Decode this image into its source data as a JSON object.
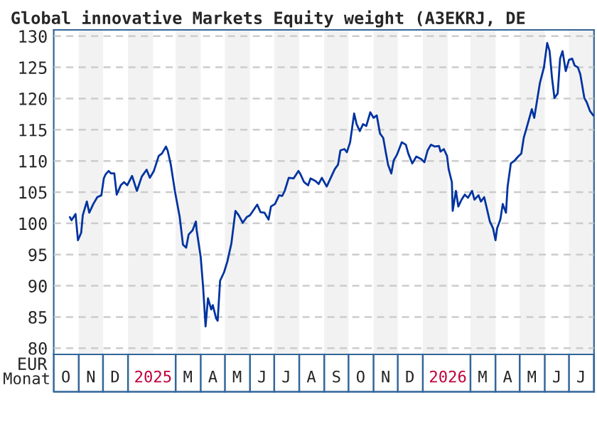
{
  "chart_data": {
    "type": "line",
    "title": "Global innovative Markets Equity weight (A3EKRJ, DE",
    "xlabel": "Monat",
    "ylabel": "EUR",
    "xlim": [
      "2024-10-01",
      "2026-08-01"
    ],
    "ylim": [
      79,
      131
    ],
    "yticks": [
      80,
      85,
      90,
      95,
      100,
      105,
      110,
      115,
      120,
      125,
      130
    ],
    "xticks": [
      {
        "value": "2024-10-16",
        "label": "O"
      },
      {
        "value": "2024-11-16",
        "label": "N"
      },
      {
        "value": "2024-12-16",
        "label": "D"
      },
      {
        "value": "2025-02-01",
        "label": "2025"
      },
      {
        "value": "2025-03-16",
        "label": "M"
      },
      {
        "value": "2025-04-16",
        "label": "A"
      },
      {
        "value": "2025-05-16",
        "label": "M"
      },
      {
        "value": "2025-06-16",
        "label": "J"
      },
      {
        "value": "2025-07-16",
        "label": "J"
      },
      {
        "value": "2025-08-16",
        "label": "A"
      },
      {
        "value": "2025-09-16",
        "label": "S"
      },
      {
        "value": "2025-10-16",
        "label": "O"
      },
      {
        "value": "2025-11-16",
        "label": "N"
      },
      {
        "value": "2025-12-16",
        "label": "D"
      },
      {
        "value": "2026-02-01",
        "label": "2026"
      },
      {
        "value": "2026-03-16",
        "label": "M"
      },
      {
        "value": "2026-04-16",
        "label": "A"
      },
      {
        "value": "2026-05-16",
        "label": "M"
      },
      {
        "value": "2026-06-16",
        "label": "J"
      },
      {
        "value": "2026-07-16",
        "label": "J"
      }
    ],
    "grid": "y",
    "line_style": "solid",
    "bands": [
      {
        "axis": "x",
        "from": "2024-11-01",
        "to": "2024-12-01",
        "label": null,
        "color": "#f2f2f2"
      },
      {
        "axis": "x",
        "from": "2025-01-01",
        "to": "2025-02-01",
        "label": null,
        "color": "#f2f2f2"
      },
      {
        "axis": "x",
        "from": "2025-03-01",
        "to": "2025-04-01",
        "label": null,
        "color": "#f2f2f2"
      },
      {
        "axis": "x",
        "from": "2025-05-01",
        "to": "2025-06-01",
        "label": null,
        "color": "#f2f2f2"
      },
      {
        "axis": "x",
        "from": "2025-07-01",
        "to": "2025-08-01",
        "label": null,
        "color": "#f2f2f2"
      },
      {
        "axis": "x",
        "from": "2025-09-01",
        "to": "2025-10-01",
        "label": null,
        "color": "#f2f2f2"
      },
      {
        "axis": "x",
        "from": "2025-11-01",
        "to": "2025-12-01",
        "label": null,
        "color": "#f2f2f2"
      },
      {
        "axis": "x",
        "from": "2026-01-01",
        "to": "2026-02-01",
        "label": null,
        "color": "#f2f2f2"
      },
      {
        "axis": "x",
        "from": "2026-03-01",
        "to": "2026-04-01",
        "label": null,
        "color": "#f2f2f2"
      },
      {
        "axis": "x",
        "from": "2026-05-01",
        "to": "2026-06-01",
        "label": null,
        "color": "#f2f2f2"
      },
      {
        "axis": "x",
        "from": "2026-07-01",
        "to": "2026-08-01",
        "label": null,
        "color": "#f2f2f2"
      }
    ],
    "series": [
      {
        "color": "#0033a0",
        "x": [
          "2024-10-21",
          "2024-10-23",
          "2024-10-28",
          "2024-10-31",
          "2024-11-04",
          "2024-11-06",
          "2024-11-11",
          "2024-11-14",
          "2024-11-19",
          "2024-11-24",
          "2024-11-29",
          "2024-12-02",
          "2024-12-04",
          "2024-12-08",
          "2024-12-11",
          "2024-12-15",
          "2024-12-18",
          "2024-12-23",
          "2024-12-27",
          "2024-12-31",
          "2025-01-06",
          "2025-01-12",
          "2025-01-18",
          "2025-01-24",
          "2025-01-28",
          "2025-02-02",
          "2025-02-08",
          "2025-02-12",
          "2025-02-17",
          "2025-02-19",
          "2025-02-23",
          "2025-02-28",
          "2025-03-06",
          "2025-03-10",
          "2025-03-14",
          "2025-03-17",
          "2025-03-22",
          "2025-03-26",
          "2025-03-27",
          "2025-04-01",
          "2025-04-04",
          "2025-04-07",
          "2025-04-10",
          "2025-04-14",
          "2025-04-16",
          "2025-04-20",
          "2025-04-22",
          "2025-04-25",
          "2025-04-30",
          "2025-05-04",
          "2025-05-09",
          "2025-05-14",
          "2025-05-18",
          "2025-05-23",
          "2025-05-28",
          "2025-06-01",
          "2025-06-10",
          "2025-06-14",
          "2025-06-19",
          "2025-06-24",
          "2025-06-27",
          "2025-07-02",
          "2025-07-07",
          "2025-07-11",
          "2025-07-14",
          "2025-07-19",
          "2025-07-25",
          "2025-07-31",
          "2025-08-02",
          "2025-08-07",
          "2025-08-12",
          "2025-08-15",
          "2025-08-21",
          "2025-08-25",
          "2025-08-29",
          "2025-09-04",
          "2025-09-09",
          "2025-09-14",
          "2025-09-18",
          "2025-09-21",
          "2025-09-26",
          "2025-09-29",
          "2025-10-03",
          "2025-10-08",
          "2025-10-11",
          "2025-10-15",
          "2025-10-19",
          "2025-10-23",
          "2025-10-28",
          "2025-11-01",
          "2025-11-05",
          "2025-11-09",
          "2025-11-13",
          "2025-11-16",
          "2025-11-19",
          "2025-11-23",
          "2025-11-26",
          "2025-11-30",
          "2025-12-06",
          "2025-12-11",
          "2025-12-14",
          "2025-12-19",
          "2025-12-24",
          "2025-12-30",
          "2026-01-03",
          "2026-01-07",
          "2026-01-11",
          "2026-01-16",
          "2026-01-21",
          "2026-01-23",
          "2026-01-27",
          "2026-01-31",
          "2026-02-02",
          "2026-02-06",
          "2026-02-07",
          "2026-02-11",
          "2026-02-14",
          "2026-02-18",
          "2026-02-22",
          "2026-02-26",
          "2026-03-03",
          "2026-03-06",
          "2026-03-11",
          "2026-03-14",
          "2026-03-18",
          "2026-03-22",
          "2026-03-25",
          "2026-03-29",
          "2026-04-01",
          "2026-04-03",
          "2026-04-07",
          "2026-04-10",
          "2026-04-14",
          "2026-04-16",
          "2026-04-20",
          "2026-04-25",
          "2026-04-29",
          "2026-05-03",
          "2026-05-06",
          "2026-05-10",
          "2026-05-16",
          "2026-05-19",
          "2026-05-22",
          "2026-05-26",
          "2026-05-31",
          "2026-06-04",
          "2026-06-07",
          "2026-06-10",
          "2026-06-13",
          "2026-06-17",
          "2026-06-20",
          "2026-06-23",
          "2026-06-27",
          "2026-07-01",
          "2026-07-05",
          "2026-07-08",
          "2026-07-12",
          "2026-07-15",
          "2026-07-20",
          "2026-07-23",
          "2026-07-27",
          "2026-07-31"
        ],
        "values": [
          101.0,
          100.5,
          101.5,
          97.3,
          98.5,
          101.3,
          103.5,
          101.7,
          103.1,
          104.2,
          104.5,
          107.2,
          107.8,
          108.4,
          108.0,
          108.0,
          104.6,
          106.1,
          106.6,
          106.1,
          107.6,
          105.2,
          107.5,
          108.6,
          107.3,
          108.4,
          110.8,
          111.2,
          112.3,
          111.7,
          109.4,
          105.2,
          101.0,
          96.6,
          96.1,
          98.2,
          98.9,
          100.3,
          98.9,
          94.6,
          89.7,
          83.5,
          88.0,
          86.2,
          86.9,
          84.8,
          84.4,
          90.8,
          92.2,
          93.9,
          96.8,
          102.0,
          101.3,
          100.1,
          101.0,
          101.3,
          103.0,
          101.8,
          101.7,
          100.6,
          102.7,
          103.1,
          104.5,
          104.4,
          105.2,
          107.3,
          107.2,
          108.4,
          108.0,
          106.6,
          106.1,
          107.2,
          106.8,
          106.3,
          107.3,
          105.9,
          107.3,
          108.7,
          109.4,
          111.7,
          111.9,
          111.4,
          113.0,
          117.6,
          115.9,
          114.8,
          115.9,
          115.6,
          117.8,
          116.9,
          117.3,
          114.4,
          113.7,
          111.5,
          109.4,
          108.0,
          110.1,
          111.0,
          113.0,
          112.6,
          111.2,
          109.6,
          110.7,
          110.3,
          109.8,
          111.7,
          112.6,
          112.3,
          112.4,
          111.5,
          111.9,
          110.8,
          108.7,
          106.6,
          102.0,
          105.2,
          102.7,
          103.8,
          104.6,
          104.1,
          105.2,
          103.8,
          104.5,
          103.5,
          104.2,
          102.0,
          100.3,
          99.2,
          97.3,
          99.2,
          100.6,
          103.1,
          101.7,
          105.9,
          109.6,
          110.1,
          110.7,
          111.2,
          113.7,
          115.5,
          118.3,
          116.9,
          119.3,
          122.5,
          125.0,
          128.9,
          127.6,
          123.3,
          120.1,
          120.8,
          126.4,
          127.6,
          124.4,
          126.2,
          126.4,
          125.3,
          125.0,
          123.9,
          120.1,
          119.4,
          118.0,
          117.3
        ]
      }
    ]
  }
}
